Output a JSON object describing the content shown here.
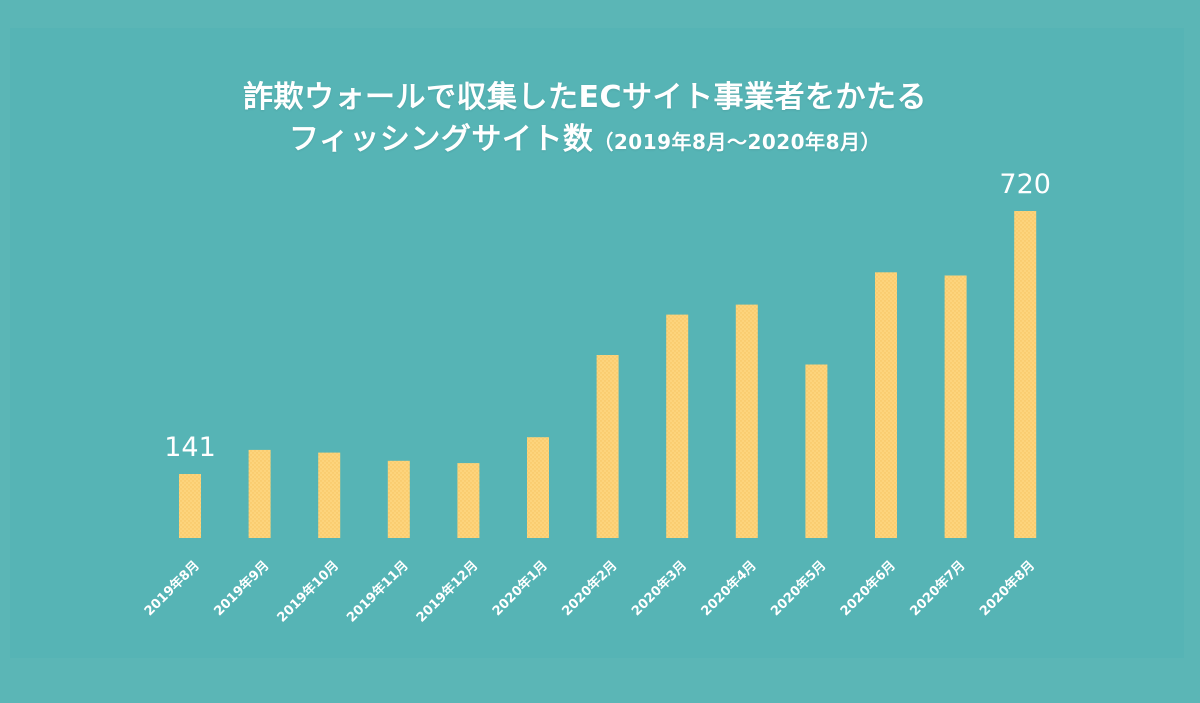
{
  "chart_data": {
    "type": "bar",
    "title_line1": "詐欺ウォールで収集したECサイト事業者をかたる",
    "title_line2": "フィッシングサイト数",
    "title_sub": "（2019年8月～2020年8月）",
    "categories": [
      "2019年8月",
      "2019年9月",
      "2019年10月",
      "2019年11月",
      "2019年12月",
      "2020年1月",
      "2020年2月",
      "2020年3月",
      "2020年4月",
      "2020年5月",
      "2020年6月",
      "2020年7月",
      "2020年8月"
    ],
    "values": [
      141,
      194,
      188,
      170,
      165,
      222,
      403,
      492,
      514,
      382,
      585,
      578,
      720
    ],
    "data_labels": [
      {
        "index": 0,
        "text": "141"
      },
      {
        "index": 12,
        "text": "720"
      }
    ],
    "ylim": [
      0,
      720
    ],
    "grid": false,
    "legend": "none",
    "colors": {
      "background": "#5bb6b6",
      "bar": "#fdd47c",
      "text": "#ffffff"
    }
  }
}
